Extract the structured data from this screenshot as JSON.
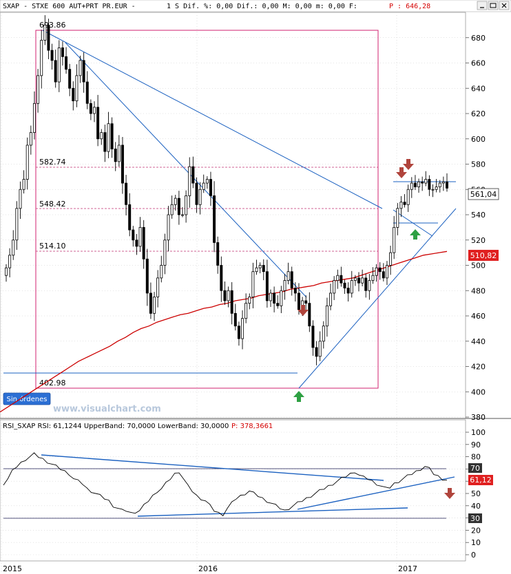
{
  "header": {
    "instrument": "SXAP - STXE 600 AUT+PRT PR.EUR -",
    "fields": "1 S Dif. %: 0,00 Dif.: 0,00 M: 0,00 m: 0,00 F:",
    "p_label": "P : 646,28"
  },
  "window_controls": {
    "minimize": "minimize-button",
    "maximize": "maximize-button",
    "close": "close-button"
  },
  "price_panel": {
    "watermark": "www.visualchart.com",
    "button": "Sin órdenes",
    "last_price_badge": "561,04",
    "ma_badge": "510,82"
  },
  "rsi_panel": {
    "title": "RSI_SXAP RSI: 61,1244 UpperBand: 70,0000 LowerBand: 30,0000",
    "p_label": "P: 378,3661",
    "upper_badge": "70",
    "lower_badge": "30",
    "value_badge": "61,12"
  },
  "x_axis": {
    "labels": [
      "2015",
      "2016",
      "2017"
    ]
  },
  "chart_data": [
    {
      "type": "candlestick",
      "frequency": "weekly",
      "ylim": [
        380,
        700
      ],
      "yticks": [
        380,
        400,
        420,
        440,
        460,
        480,
        500,
        520,
        540,
        560,
        580,
        600,
        620,
        640,
        660,
        680
      ],
      "xlabels": [
        "2015",
        "2016",
        "2017"
      ],
      "close": [
        498,
        508,
        520,
        545,
        560,
        568,
        595,
        605,
        628,
        650,
        678,
        690,
        670,
        662,
        645,
        672,
        665,
        655,
        640,
        630,
        650,
        662,
        645,
        628,
        620,
        625,
        600,
        605,
        590,
        612,
        592,
        582,
        595,
        565,
        548,
        528,
        520,
        515,
        530,
        505,
        478,
        462,
        475,
        490,
        500,
        520,
        540,
        548,
        553,
        540,
        540,
        555,
        578,
        565,
        548,
        560,
        565,
        568,
        555,
        518,
        500,
        480,
        472,
        480,
        462,
        452,
        442,
        458,
        470,
        475,
        495,
        498,
        500,
        495,
        472,
        478,
        470,
        468,
        480,
        488,
        495,
        482,
        478,
        465,
        472,
        470,
        452,
        435,
        428,
        440,
        452,
        468,
        478,
        488,
        492,
        486,
        482,
        478,
        488,
        490,
        486,
        490,
        480,
        488,
        492,
        498,
        495,
        490,
        500,
        510,
        530,
        545,
        550,
        548,
        560,
        565,
        562,
        566,
        565,
        568,
        560,
        560,
        562,
        565,
        566,
        561
      ],
      "annotations": {
        "horizontal_levels": [
          "693.86",
          "582.74",
          "548.42",
          "514.10",
          "402.98"
        ],
        "arrows": [
          "sell",
          "sell",
          "sell",
          "buy",
          "buy"
        ]
      },
      "series": [
        {
          "name": "SXAP",
          "kind": "price"
        },
        {
          "kind": "moving_average",
          "color": "#cc0000",
          "values": [
            384,
            388,
            392,
            396,
            400,
            404,
            408,
            412,
            416,
            420,
            424,
            427,
            430,
            433,
            436,
            440,
            443,
            447,
            450,
            452,
            455,
            457,
            459,
            461,
            462,
            464,
            466,
            467,
            469,
            470,
            472,
            473,
            474,
            476,
            477,
            478,
            479,
            481,
            482,
            483,
            484,
            486,
            487,
            488,
            489,
            490,
            492,
            494,
            496,
            498,
            500,
            502,
            504,
            506,
            508,
            509,
            510,
            511
          ]
        }
      ]
    },
    {
      "type": "line",
      "name": "RSI_SXAP",
      "ylim": [
        0,
        100
      ],
      "yticks": [
        0,
        10,
        20,
        30,
        40,
        50,
        60,
        70,
        80,
        90,
        100
      ],
      "bands": {
        "upper": 70,
        "lower": 30
      },
      "values": [
        58,
        62,
        68,
        72,
        75,
        78,
        80,
        82,
        80,
        78,
        76,
        74,
        72,
        70,
        68,
        66,
        62,
        60,
        58,
        54,
        52,
        50,
        48,
        46,
        44,
        40,
        38,
        36,
        36,
        34,
        35,
        36,
        40,
        44,
        48,
        52,
        54,
        58,
        62,
        66,
        68,
        62,
        56,
        52,
        48,
        46,
        44,
        40,
        36,
        34,
        33,
        38,
        42,
        46,
        48,
        50,
        52,
        50,
        48,
        46,
        44,
        42,
        40,
        38,
        36,
        38,
        40,
        42,
        44,
        46,
        48,
        50,
        52,
        54,
        56,
        58,
        60,
        62,
        64,
        66,
        68,
        65,
        63,
        62,
        60,
        58,
        56,
        54,
        55,
        58,
        60,
        62,
        64,
        66,
        68,
        70,
        72,
        70,
        66,
        64,
        62,
        61
      ]
    }
  ]
}
